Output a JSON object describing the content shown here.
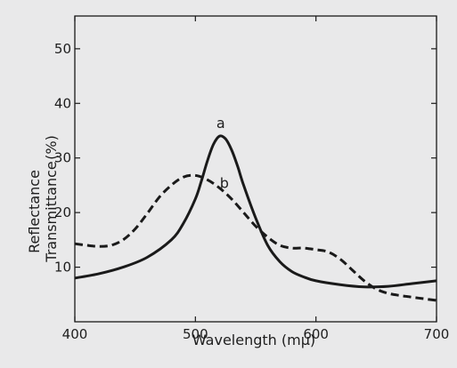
{
  "chart_data": {
    "type": "line",
    "title": "",
    "xlabel": "Wavelength (mμ)",
    "ylabel_lines": [
      "Reflectance",
      "Transmittance"
    ],
    "ylabel_unit": "(%)",
    "xlim": [
      400,
      700
    ],
    "ylim": [
      0,
      56
    ],
    "xticks": [
      400,
      500,
      600,
      700
    ],
    "xtick_labels": [
      "400",
      "500",
      "600",
      "700"
    ],
    "yticks": [
      10,
      20,
      30,
      40,
      50
    ],
    "ytick_labels": [
      "10",
      "20",
      "30",
      "40",
      "50"
    ],
    "grid": false,
    "legend": "none",
    "series": [
      {
        "name": "a",
        "style": "solid",
        "color": "#1a1a1a",
        "x": [
          400,
          420,
          440,
          460,
          480,
          490,
          500,
          505,
          510,
          515,
          520,
          525,
          530,
          535,
          540,
          550,
          560,
          570,
          580,
          590,
          600,
          620,
          640,
          660,
          680,
          700
        ],
        "y": [
          8,
          8.8,
          10,
          11.8,
          15,
          18,
          22.5,
          25.8,
          29.5,
          32.5,
          34,
          33.5,
          31.5,
          28.5,
          25,
          19,
          14,
          11,
          9.2,
          8.2,
          7.5,
          6.8,
          6.4,
          6.5,
          7,
          7.5
        ]
      },
      {
        "name": "b",
        "style": "dashed",
        "color": "#1a1a1a",
        "x": [
          400,
          410,
          420,
          430,
          440,
          450,
          460,
          470,
          480,
          490,
          500,
          510,
          520,
          530,
          540,
          550,
          560,
          570,
          580,
          590,
          600,
          610,
          620,
          630,
          640,
          650,
          660,
          670,
          680,
          690,
          700
        ],
        "y": [
          14.3,
          14,
          13.8,
          14,
          15,
          17,
          19.8,
          22.8,
          25,
          26.5,
          26.8,
          26,
          24.5,
          22.5,
          20,
          17.5,
          15.5,
          14,
          13.5,
          13.5,
          13.2,
          12.8,
          11.5,
          9.5,
          7.5,
          6,
          5.2,
          4.8,
          4.5,
          4.2,
          3.9
        ]
      }
    ],
    "annotations": [
      {
        "text": "a",
        "x": 521,
        "y": 35.5
      },
      {
        "text": "b",
        "x": 524,
        "y": 24.5
      }
    ]
  },
  "colors": {
    "background": "#e9e9ea",
    "ink": "#1a1a1a"
  }
}
